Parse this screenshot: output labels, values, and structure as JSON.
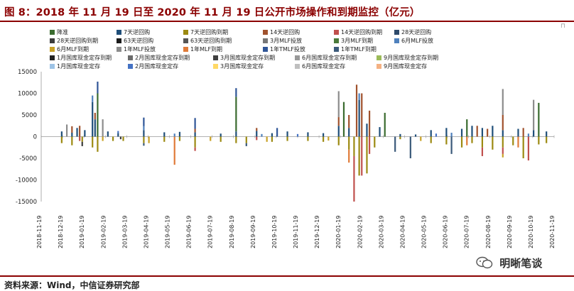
{
  "header": {
    "title": "图 8：2018 年 11 月 19 日至 2020 年 11 月 19 日公开市场操作和到期监控（亿元）",
    "corner_mark": "⊓"
  },
  "footer": {
    "source": "资料来源：Wind，中信证券研究部",
    "watermark_text": "明晰笔谈"
  },
  "chart_data": {
    "type": "bar",
    "stacked": true,
    "ylim": [
      -15000,
      15000
    ],
    "yticks": [
      15000,
      10000,
      5000,
      0,
      -5000,
      -10000,
      -15000
    ],
    "xtick_labels": [
      "2018-11-19",
      "2018-12-19",
      "2019-01-19",
      "2019-02-19",
      "2019-03-19",
      "2019-04-19",
      "2019-05-19",
      "2019-06-19",
      "2019-07-19",
      "2019-08-19",
      "2019-09-19",
      "2019-10-19",
      "2019-11-19",
      "2019-12-19",
      "2020-01-19",
      "2020-02-19",
      "2020-03-19",
      "2020-04-19",
      "2020-05-19",
      "2020-06-19",
      "2020-07-19",
      "2020-08-19",
      "2020-09-19",
      "2020-10-19",
      "2020-11-19"
    ],
    "legend": [
      {
        "name": "降准",
        "color": "#3a6b2f"
      },
      {
        "name": "7天逆回购",
        "color": "#1f4e79"
      },
      {
        "name": "7天逆回购到期",
        "color": "#9c8a12"
      },
      {
        "name": "14天逆回购",
        "color": "#a0522d"
      },
      {
        "name": "14天逆回购到期",
        "color": "#c0504d"
      },
      {
        "name": "28天逆回购",
        "color": "#2e4a6b"
      },
      {
        "name": "28天逆回购到期",
        "color": "#3c3c3c"
      },
      {
        "name": "63天逆回购",
        "color": "#1a1a1a"
      },
      {
        "name": "63天逆回购到期",
        "color": "#555555"
      },
      {
        "name": "3月MLF投放",
        "color": "#777777"
      },
      {
        "name": "3月MLF到期",
        "color": "#4a7a3a"
      },
      {
        "name": "6月MLF投放",
        "color": "#4f81bd"
      },
      {
        "name": "6月MLF到期",
        "color": "#c9a227"
      },
      {
        "name": "1年MLF投放",
        "color": "#8c8c8c"
      },
      {
        "name": "1年MLF到期",
        "color": "#e07b39"
      },
      {
        "name": "1年TMLF投放",
        "color": "#2f5597"
      },
      {
        "name": "1年TMLF到期",
        "color": "#3b5a7a"
      },
      {
        "name": "1月国库现金定存到期",
        "color": "#222222"
      },
      {
        "name": "2月国库现金定存到期",
        "color": "#6b6b6b"
      },
      {
        "name": "3月国库现金定存到期",
        "color": "#404040"
      },
      {
        "name": "6月国库现金定存到期",
        "color": "#999999"
      },
      {
        "name": "9月国库现金定存到期",
        "color": "#9bbb59"
      },
      {
        "name": "1月国库现金定存",
        "color": "#9dc3e6"
      },
      {
        "name": "2月国库现金定存",
        "color": "#4472c4"
      },
      {
        "name": "3月国库现金定存",
        "color": "#ffd966"
      },
      {
        "name": "6月国库现金定存",
        "color": "#bfbfbf"
      },
      {
        "name": "9月国库现金定存",
        "color": "#f4b183"
      }
    ],
    "series_positive": [
      {
        "name": "7天逆回购",
        "color": "#1f4e79",
        "points": [
          [
            0.04,
            1200
          ],
          [
            0.06,
            900
          ],
          [
            0.07,
            2000
          ],
          [
            0.085,
            1500
          ],
          [
            0.1,
            8000
          ],
          [
            0.105,
            4000
          ],
          [
            0.13,
            1200
          ],
          [
            0.15,
            800
          ],
          [
            0.2,
            1500
          ],
          [
            0.24,
            1000
          ],
          [
            0.27,
            1100
          ],
          [
            0.3,
            1000
          ],
          [
            0.35,
            700
          ],
          [
            0.38,
            1200
          ],
          [
            0.42,
            1300
          ],
          [
            0.45,
            800
          ],
          [
            0.48,
            1200
          ],
          [
            0.52,
            1000
          ],
          [
            0.55,
            800
          ],
          [
            0.58,
            2500
          ],
          [
            0.6,
            2000
          ],
          [
            0.62,
            8500
          ],
          [
            0.635,
            3000
          ],
          [
            0.66,
            2200
          ],
          [
            0.7,
            600
          ],
          [
            0.73,
            500
          ],
          [
            0.76,
            1500
          ],
          [
            0.79,
            2000
          ],
          [
            0.82,
            1800
          ],
          [
            0.84,
            2500
          ],
          [
            0.86,
            2000
          ],
          [
            0.88,
            2500
          ],
          [
            0.9,
            1500
          ],
          [
            0.93,
            1800
          ],
          [
            0.96,
            1500
          ],
          [
            0.985,
            1200
          ]
        ]
      },
      {
        "name": "14天逆回购",
        "color": "#a0522d",
        "points": [
          [
            0.06,
            1500
          ],
          [
            0.075,
            2500
          ],
          [
            0.105,
            1500
          ],
          [
            0.3,
            800
          ],
          [
            0.42,
            700
          ],
          [
            0.58,
            2000
          ],
          [
            0.6,
            3000
          ],
          [
            0.615,
            12000
          ],
          [
            0.625,
            10000
          ],
          [
            0.64,
            6000
          ],
          [
            0.85,
            2500
          ],
          [
            0.87,
            1800
          ],
          [
            0.9,
            3500
          ],
          [
            0.94,
            2000
          ]
        ]
      },
      {
        "name": "6月MLF投放",
        "color": "#4f81bd",
        "points": [
          [
            0.1,
            1500
          ],
          [
            0.2,
            900
          ],
          [
            0.26,
            700
          ],
          [
            0.43,
            600
          ],
          [
            0.62,
            1500
          ],
          [
            0.8,
            900
          ],
          [
            0.95,
            700
          ]
        ]
      },
      {
        "name": "降准",
        "color": "#3a6b2f",
        "points": [
          [
            0.11,
            10000
          ],
          [
            0.38,
            8000
          ],
          [
            0.59,
            8000
          ],
          [
            0.67,
            5500
          ],
          [
            0.83,
            4000
          ],
          [
            0.97,
            7800
          ]
        ]
      },
      {
        "name": "1年MLF投放",
        "color": "#8c8c8c",
        "points": [
          [
            0.05,
            2800
          ],
          [
            0.12,
            4000
          ],
          [
            0.58,
            6000
          ],
          [
            0.9,
            6000
          ],
          [
            0.96,
            7000
          ]
        ]
      },
      {
        "name": "1年TMLF投放",
        "color": "#2f5597",
        "points": [
          [
            0.11,
            2700
          ],
          [
            0.2,
            2000
          ],
          [
            0.3,
            2500
          ],
          [
            0.38,
            2000
          ],
          [
            0.46,
            2000
          ]
        ]
      },
      {
        "name": "2月国库现金定存",
        "color": "#4472c4",
        "points": [
          [
            0.15,
            500
          ],
          [
            0.5,
            600
          ],
          [
            0.77,
            700
          ]
        ]
      }
    ],
    "series_negative": [
      {
        "name": "7天逆回购到期",
        "color": "#9c8a12",
        "points": [
          [
            0.04,
            -1500
          ],
          [
            0.06,
            -2000
          ],
          [
            0.08,
            -1200
          ],
          [
            0.1,
            -2500
          ],
          [
            0.11,
            -3500
          ],
          [
            0.14,
            -1000
          ],
          [
            0.16,
            -1000
          ],
          [
            0.2,
            -1500
          ],
          [
            0.24,
            -1200
          ],
          [
            0.27,
            -1000
          ],
          [
            0.3,
            -2500
          ],
          [
            0.35,
            -1200
          ],
          [
            0.38,
            -1500
          ],
          [
            0.4,
            -1500
          ],
          [
            0.45,
            -1200
          ],
          [
            0.48,
            -1000
          ],
          [
            0.52,
            -1000
          ],
          [
            0.55,
            -1200
          ],
          [
            0.58,
            -2000
          ],
          [
            0.6,
            -3000
          ],
          [
            0.61,
            -4500
          ],
          [
            0.62,
            -9000
          ],
          [
            0.635,
            -8500
          ],
          [
            0.65,
            -2500
          ],
          [
            0.7,
            -600
          ],
          [
            0.76,
            -1500
          ],
          [
            0.79,
            -1800
          ],
          [
            0.82,
            -2500
          ],
          [
            0.84,
            -1500
          ],
          [
            0.86,
            -2500
          ],
          [
            0.88,
            -3000
          ],
          [
            0.9,
            -2500
          ],
          [
            0.92,
            -2000
          ],
          [
            0.94,
            -5000
          ],
          [
            0.97,
            -1800
          ],
          [
            0.985,
            -1500
          ]
        ]
      },
      {
        "name": "14天逆回购到期",
        "color": "#c0504d",
        "points": [
          [
            0.075,
            -1000
          ],
          [
            0.3,
            -800
          ],
          [
            0.42,
            -800
          ],
          [
            0.61,
            -10500
          ],
          [
            0.625,
            -9000
          ],
          [
            0.64,
            -4000
          ],
          [
            0.86,
            -2000
          ],
          [
            0.9,
            -1500
          ],
          [
            0.95,
            -5500
          ]
        ]
      },
      {
        "name": "1年MLF到期",
        "color": "#e07b39",
        "points": [
          [
            0.26,
            -6500
          ],
          [
            0.6,
            -3000
          ],
          [
            0.83,
            -2000
          ],
          [
            0.93,
            -2500
          ]
        ]
      },
      {
        "name": "6月MLF到期",
        "color": "#c9a227",
        "points": [
          [
            0.12,
            -1000
          ],
          [
            0.21,
            -1500
          ],
          [
            0.33,
            -1000
          ],
          [
            0.44,
            -1200
          ],
          [
            0.56,
            -900
          ],
          [
            0.74,
            -1000
          ],
          [
            0.9,
            -800
          ]
        ]
      },
      {
        "name": "1年TMLF到期",
        "color": "#3b5a7a",
        "points": [
          [
            0.2,
            -600
          ],
          [
            0.4,
            -700
          ],
          [
            0.69,
            -3500
          ],
          [
            0.72,
            -5000
          ],
          [
            0.8,
            -4000
          ]
        ]
      },
      {
        "name": "28天逆回购到期",
        "color": "#3c3c3c",
        "points": [
          [
            0.08,
            -1000
          ],
          [
            0.155,
            -600
          ]
        ]
      }
    ]
  }
}
